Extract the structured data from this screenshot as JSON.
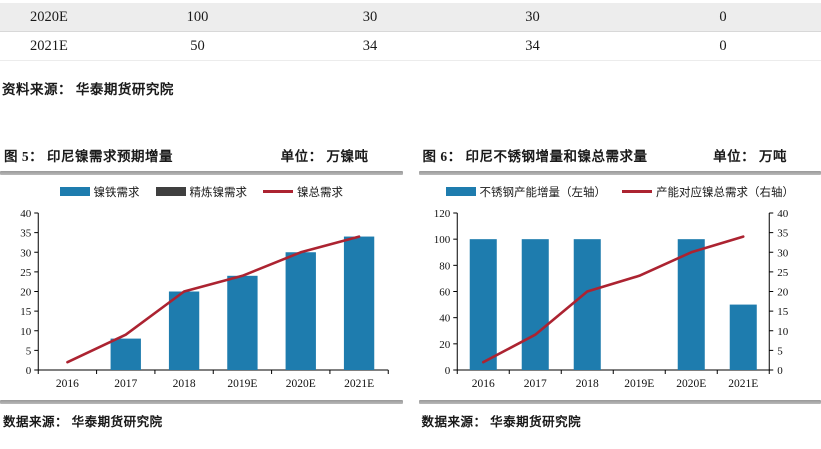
{
  "table": {
    "rows": [
      {
        "cells": [
          "2020E",
          "100",
          "30",
          "30",
          "0"
        ]
      },
      {
        "cells": [
          "2021E",
          "50",
          "34",
          "34",
          "0"
        ]
      }
    ],
    "source": "资料来源： 华泰期货研究院"
  },
  "figures": [
    {
      "label": "图 5：  印尼镍需求预期增量",
      "unit": "单位： 万镍吨",
      "source": "数据来源： 华泰期货研究院"
    },
    {
      "label": "图 6：  印尼不锈钢增量和镍总需求量",
      "unit": "单位： 万吨",
      "source": "数据来源： 华泰期货研究院"
    }
  ],
  "colors": {
    "bar_blue": "#1E7CAE",
    "bar_gray": "#3F3F3F",
    "line_red": "#AC2331",
    "row_shade": "#EDEDED",
    "divider_gray": "#9E9E9E"
  },
  "chart_data": [
    {
      "id": "chart5",
      "type": "bar",
      "title": "印尼镍需求预期增量",
      "unit": "万镍吨",
      "categories": [
        "2016",
        "2017",
        "2018",
        "2019E",
        "2020E",
        "2021E"
      ],
      "left_axis": {
        "min": 0,
        "max": 40,
        "step": 5
      },
      "grid": false,
      "legend_position": "top",
      "series": [
        {
          "name": "镍铁需求",
          "type": "bar",
          "stack": true,
          "axis": "left",
          "color": "#1E7CAE",
          "values": [
            0,
            8,
            20,
            24,
            30,
            34
          ]
        },
        {
          "name": "精炼镍需求",
          "type": "bar",
          "stack": true,
          "axis": "left",
          "color": "#3F3F3F",
          "values": [
            0,
            0,
            0,
            0,
            0,
            0
          ]
        },
        {
          "name": "镍总需求",
          "type": "line",
          "axis": "left",
          "color": "#AC2331",
          "values": [
            2,
            9,
            20,
            24,
            30,
            34
          ]
        }
      ]
    },
    {
      "id": "chart6",
      "type": "bar",
      "title": "印尼不锈钢增量和镍总需求量",
      "unit": "万吨",
      "categories": [
        "2016",
        "2017",
        "2018",
        "2019E",
        "2020E",
        "2021E"
      ],
      "left_axis": {
        "min": 0,
        "max": 120,
        "step": 20
      },
      "right_axis": {
        "min": 0,
        "max": 40,
        "step": 5
      },
      "grid": false,
      "legend_position": "top",
      "series": [
        {
          "name": "不锈钢产能增量（左轴）",
          "type": "bar",
          "stack": true,
          "axis": "left",
          "color": "#1E7CAE",
          "values": [
            100,
            100,
            100,
            0,
            100,
            50
          ]
        },
        {
          "name": "产能对应镍总需求（右轴）",
          "type": "line",
          "axis": "right",
          "color": "#AC2331",
          "values": [
            2,
            9,
            20,
            24,
            30,
            34
          ]
        }
      ]
    }
  ]
}
